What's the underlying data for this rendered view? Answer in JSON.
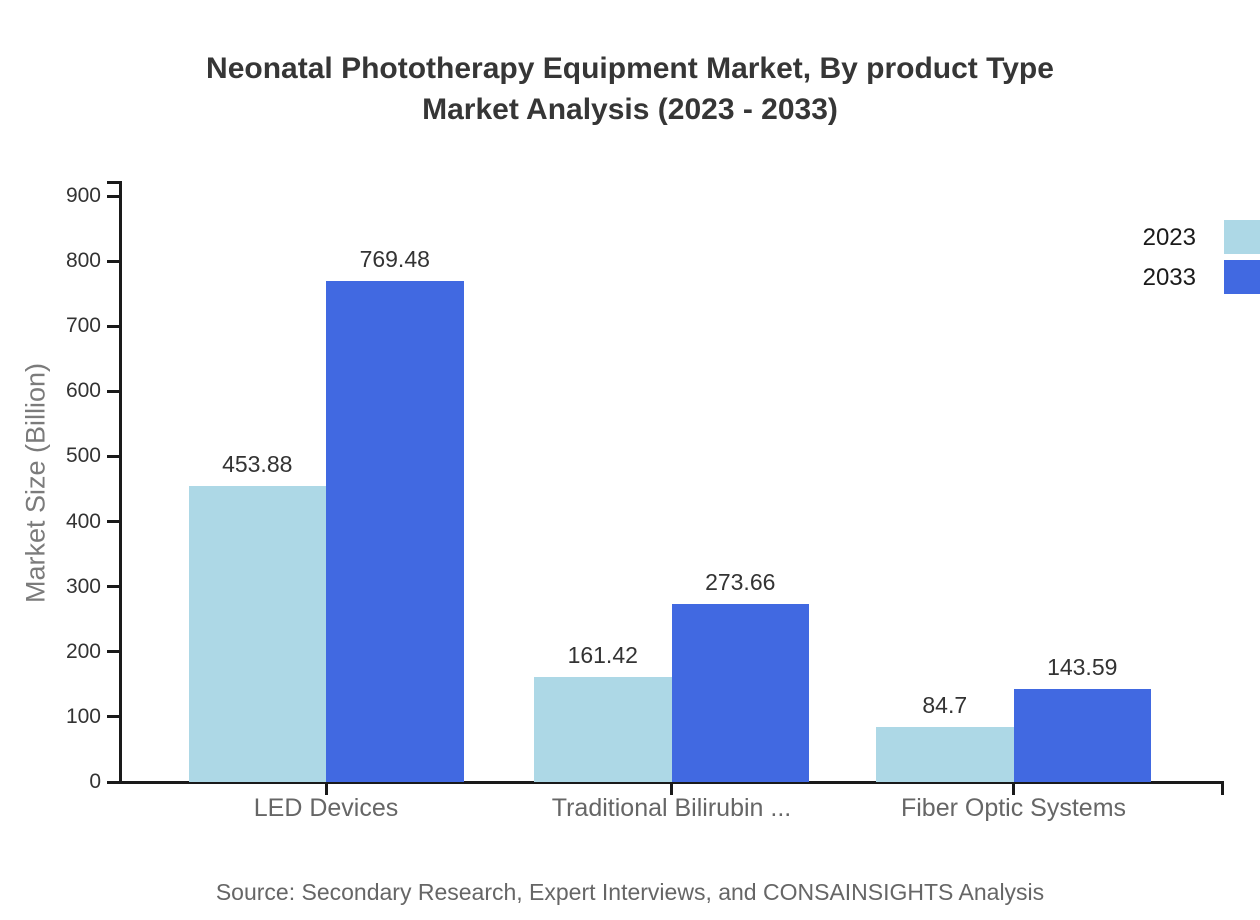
{
  "title": {
    "line1": "Neonatal Phototherapy Equipment Market, By product Type",
    "line2": "Market Analysis (2023 - 2033)"
  },
  "chart_data": {
    "type": "bar",
    "title": "Neonatal Phototherapy Equipment Market, By product Type Market Analysis (2023 - 2033)",
    "categories": [
      "LED Devices",
      "Traditional Bilirubin ...",
      "Fiber Optic Systems"
    ],
    "series": [
      {
        "name": "2023",
        "color": "#ADD8E6",
        "values": [
          453.88,
          161.42,
          84.7
        ],
        "labels": [
          "453.88",
          "161.42",
          "84.7"
        ]
      },
      {
        "name": "2033",
        "color": "#4169E1",
        "values": [
          769.48,
          273.66,
          143.59
        ],
        "labels": [
          "769.48",
          "273.66",
          "143.59"
        ]
      }
    ],
    "xlabel": "",
    "ylabel": "Market Size (Billion)",
    "ylim": [
      0,
      900
    ],
    "yticks": [
      "0",
      "100",
      "200",
      "300",
      "400",
      "500",
      "600",
      "700",
      "800",
      "900"
    ],
    "grid": false,
    "legend_position": "top-right",
    "axis_color": "#1a1a1a",
    "source": "Source: Secondary Research, Expert Interviews, and CONSAINSIGHTS Analysis"
  }
}
